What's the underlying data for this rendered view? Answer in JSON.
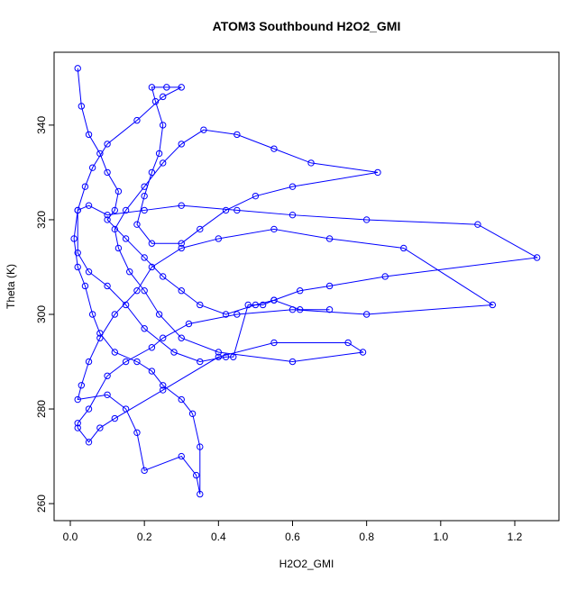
{
  "chart_data": {
    "type": "line",
    "title": "ATOM3 Southbound H2O2_GMI",
    "x_label": "H2O2_GMI",
    "y_label": "Theta (K)",
    "color": "#0000ff",
    "markers": true,
    "xlim": [
      -0.0438,
      1.3193
    ],
    "ylim": [
      256.4,
      355.4
    ],
    "xticks": [
      {
        "value": 0,
        "label": "0.0"
      },
      0.2,
      0.4,
      0.6,
      0.8,
      {
        "value": 1,
        "label": "1.0"
      },
      1.2
    ],
    "yticks": [
      260,
      280,
      300,
      320,
      340
    ],
    "x": [
      0.02,
      0.03,
      0.05,
      0.08,
      0.1,
      0.13,
      0.12,
      0.1,
      0.15,
      0.2,
      0.25,
      0.3,
      0.35,
      0.42,
      0.5,
      0.55,
      0.62,
      0.7,
      0.85,
      1.26,
      1.1,
      0.8,
      0.6,
      0.45,
      0.3,
      0.2,
      0.1,
      0.05,
      0.02,
      0.01,
      0.02,
      0.04,
      0.06,
      0.08,
      0.12,
      0.18,
      0.22,
      0.25,
      0.3,
      0.33,
      0.35,
      0.35,
      0.34,
      0.3,
      0.2,
      0.18,
      0.15,
      0.1,
      0.02,
      0.03,
      0.05,
      0.08,
      0.12,
      0.18,
      0.22,
      0.3,
      0.4,
      0.55,
      0.7,
      0.9,
      1.14,
      0.8,
      0.6,
      0.45,
      0.32,
      0.25,
      0.22,
      0.15,
      0.1,
      0.05,
      0.02,
      0.02,
      0.05,
      0.08,
      0.12,
      0.25,
      0.4,
      0.55,
      0.75,
      0.79,
      0.6,
      0.4,
      0.3,
      0.24,
      0.2,
      0.16,
      0.13,
      0.12,
      0.15,
      0.2,
      0.25,
      0.3,
      0.36,
      0.45,
      0.55,
      0.65,
      0.83,
      0.6,
      0.5,
      0.42,
      0.35,
      0.3,
      0.22,
      0.18,
      0.2,
      0.22,
      0.24,
      0.25,
      0.23,
      0.22,
      0.26,
      0.3,
      0.25,
      0.18,
      0.1,
      0.06,
      0.04,
      0.02,
      0.02,
      0.05,
      0.1,
      0.15,
      0.2,
      0.28,
      0.35,
      0.42,
      0.44,
      0.48,
      0.52,
      0.55,
      0.62,
      0.7
    ],
    "values": [
      352,
      344,
      338,
      334,
      330,
      326,
      322,
      320,
      316,
      312,
      308,
      305,
      302,
      300,
      302,
      303,
      305,
      306,
      308,
      312,
      319,
      320,
      321,
      322,
      323,
      322,
      321,
      323,
      322,
      316,
      310,
      306,
      300,
      296,
      292,
      290,
      288,
      285,
      282,
      279,
      272,
      262,
      266,
      270,
      267,
      275,
      280,
      283,
      282,
      285,
      290,
      295,
      300,
      305,
      310,
      314,
      316,
      318,
      316,
      314,
      302,
      300,
      301,
      300,
      298,
      295,
      293,
      290,
      287,
      280,
      277,
      276,
      273,
      276,
      278,
      284,
      291,
      294,
      294,
      292,
      290,
      292,
      295,
      300,
      305,
      309,
      314,
      318,
      322,
      327,
      332,
      336,
      339,
      338,
      335,
      332,
      330,
      327,
      325,
      322,
      318,
      315,
      315,
      319,
      325,
      330,
      334,
      340,
      345,
      348,
      348,
      348,
      346,
      341,
      336,
      331,
      327,
      322,
      313,
      309,
      306,
      302,
      297,
      292,
      290,
      291,
      291,
      302,
      302,
      303,
      301,
      301
    ]
  }
}
